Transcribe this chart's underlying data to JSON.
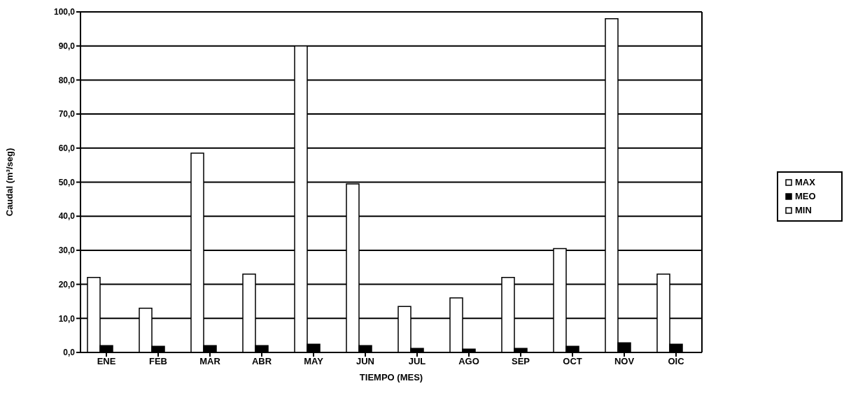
{
  "chart_data": {
    "type": "bar",
    "xlabel": "TIEMPO (MES)",
    "ylabel": "Caudal (m³/seg)",
    "categories": [
      "ENE",
      "FEB",
      "MAR",
      "ABR",
      "MAY",
      "JUN",
      "JUL",
      "AGO",
      "SEP",
      "OCT",
      "NOV",
      "OIC"
    ],
    "series": [
      {
        "name": "MAX",
        "color": "#ffffff",
        "values": [
          22,
          13,
          58.5,
          23,
          90,
          49.5,
          13.5,
          16,
          22,
          30.5,
          98,
          23
        ]
      },
      {
        "name": "MEO",
        "color": "#000000",
        "values": [
          2,
          1.8,
          2,
          2,
          2.4,
          2,
          1.2,
          1,
          1.2,
          1.8,
          2.8,
          2.4
        ]
      },
      {
        "name": "MIN",
        "color": "#ffffff",
        "values": [
          null,
          null,
          null,
          null,
          null,
          null,
          null,
          null,
          null,
          null,
          null,
          null
        ]
      }
    ],
    "ylim": [
      0,
      100
    ],
    "yticks": [
      {
        "value": 0,
        "label": "0,0"
      },
      {
        "value": 10,
        "label": "10,0"
      },
      {
        "value": 20,
        "label": "20,0"
      },
      {
        "value": 30,
        "label": "30,0"
      },
      {
        "value": 40,
        "label": "40,0"
      },
      {
        "value": 50,
        "label": "50,0"
      },
      {
        "value": 60,
        "label": "60,0"
      },
      {
        "value": 70,
        "label": "70,0"
      },
      {
        "value": 80,
        "label": "80,0"
      },
      {
        "value": 90,
        "label": "90,0"
      },
      {
        "value": 100,
        "label": "100,0"
      }
    ],
    "grid": "y",
    "legend": "right"
  }
}
